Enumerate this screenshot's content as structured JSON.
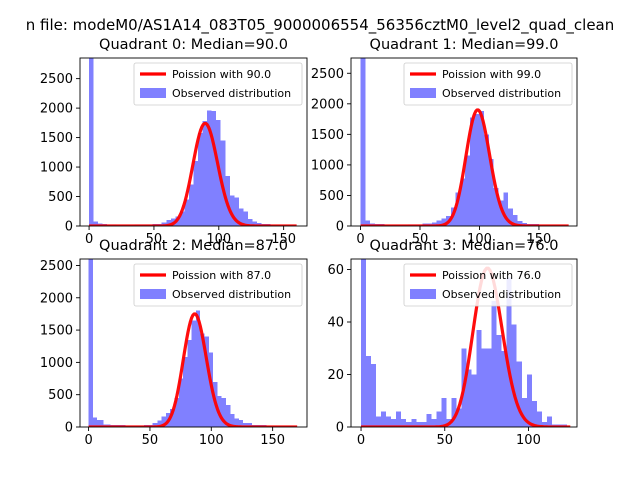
{
  "figure": {
    "suptitle": "n file: modeM0/AS1A14_083T05_9000006554_56356cztM0_level2_quad_clean"
  },
  "colors": {
    "hist": "#8080ff",
    "poisson": "#ff0000",
    "axis": "#000000",
    "bg": "#ffffff"
  },
  "chart_data": [
    {
      "type": "bar",
      "title": "Quadrant 0: Median=90.0",
      "legend": [
        "Poission with 90.0",
        "Observed distribution"
      ],
      "legend_position": "top-right",
      "xlim": [
        -7,
        168
      ],
      "ylim": [
        0,
        2850
      ],
      "xticks": [
        0,
        50,
        100,
        150
      ],
      "yticks": [
        0,
        500,
        1000,
        1500,
        2000,
        2500
      ],
      "mu": 90,
      "scale": 1740,
      "curve_range": [
        0,
        160
      ],
      "bins": [
        {
          "x0": 0,
          "x1": 3.5,
          "y": 2850
        },
        {
          "x0": 3.5,
          "x1": 7,
          "y": 80
        },
        {
          "x0": 7,
          "x1": 10.5,
          "y": 45
        },
        {
          "x0": 10.5,
          "x1": 14,
          "y": 35
        },
        {
          "x0": 14,
          "x1": 21,
          "y": 25
        },
        {
          "x0": 21,
          "x1": 35,
          "y": 20
        },
        {
          "x0": 35,
          "x1": 49,
          "y": 25
        },
        {
          "x0": 49,
          "x1": 56,
          "y": 35
        },
        {
          "x0": 56,
          "x1": 59.5,
          "y": 60
        },
        {
          "x0": 59.5,
          "x1": 63,
          "y": 100
        },
        {
          "x0": 63,
          "x1": 66.5,
          "y": 130
        },
        {
          "x0": 66.5,
          "x1": 70,
          "y": 160
        },
        {
          "x0": 70,
          "x1": 73.5,
          "y": 250
        },
        {
          "x0": 73.5,
          "x1": 77,
          "y": 450
        },
        {
          "x0": 77,
          "x1": 80.5,
          "y": 700
        },
        {
          "x0": 80.5,
          "x1": 84,
          "y": 1100
        },
        {
          "x0": 84,
          "x1": 87.5,
          "y": 1580
        },
        {
          "x0": 87.5,
          "x1": 91,
          "y": 1780
        },
        {
          "x0": 91,
          "x1": 94.5,
          "y": 1960
        },
        {
          "x0": 94.5,
          "x1": 98,
          "y": 1950
        },
        {
          "x0": 98,
          "x1": 101.5,
          "y": 1800
        },
        {
          "x0": 101.5,
          "x1": 105,
          "y": 1450
        },
        {
          "x0": 105,
          "x1": 108.5,
          "y": 850
        },
        {
          "x0": 108.5,
          "x1": 112,
          "y": 520
        },
        {
          "x0": 112,
          "x1": 115.5,
          "y": 480
        },
        {
          "x0": 115.5,
          "x1": 119,
          "y": 300
        },
        {
          "x0": 119,
          "x1": 122.5,
          "y": 250
        },
        {
          "x0": 122.5,
          "x1": 126,
          "y": 120
        },
        {
          "x0": 126,
          "x1": 129.5,
          "y": 80
        },
        {
          "x0": 129.5,
          "x1": 133,
          "y": 55
        },
        {
          "x0": 133,
          "x1": 140,
          "y": 30
        },
        {
          "x0": 140,
          "x1": 160,
          "y": 12
        }
      ]
    },
    {
      "type": "bar",
      "title": "Quadrant 1: Median=99.0",
      "legend": [
        "Poission with 99.0",
        "Observed distribution"
      ],
      "legend_position": "top-right",
      "xlim": [
        -8,
        182
      ],
      "ylim": [
        0,
        2750
      ],
      "xticks": [
        0,
        50,
        100,
        150
      ],
      "yticks": [
        0,
        500,
        1000,
        1500,
        2000,
        2500
      ],
      "mu": 99,
      "scale": 1900,
      "curve_range": [
        0,
        175
      ],
      "bins": [
        {
          "x0": 0,
          "x1": 4,
          "y": 2750
        },
        {
          "x0": 4,
          "x1": 8,
          "y": 90
        },
        {
          "x0": 8,
          "x1": 12,
          "y": 40
        },
        {
          "x0": 12,
          "x1": 20,
          "y": 30
        },
        {
          "x0": 20,
          "x1": 40,
          "y": 20
        },
        {
          "x0": 40,
          "x1": 52,
          "y": 25
        },
        {
          "x0": 52,
          "x1": 60,
          "y": 40
        },
        {
          "x0": 60,
          "x1": 64,
          "y": 60
        },
        {
          "x0": 64,
          "x1": 68,
          "y": 90
        },
        {
          "x0": 68,
          "x1": 72,
          "y": 120
        },
        {
          "x0": 72,
          "x1": 76,
          "y": 160
        },
        {
          "x0": 76,
          "x1": 80,
          "y": 300
        },
        {
          "x0": 80,
          "x1": 84,
          "y": 550
        },
        {
          "x0": 84,
          "x1": 88,
          "y": 780
        },
        {
          "x0": 88,
          "x1": 92,
          "y": 1150
        },
        {
          "x0": 92,
          "x1": 96,
          "y": 1780
        },
        {
          "x0": 96,
          "x1": 100,
          "y": 1830
        },
        {
          "x0": 100,
          "x1": 104,
          "y": 1880
        },
        {
          "x0": 104,
          "x1": 108,
          "y": 1500
        },
        {
          "x0": 108,
          "x1": 112,
          "y": 1100
        },
        {
          "x0": 112,
          "x1": 116,
          "y": 620
        },
        {
          "x0": 116,
          "x1": 120,
          "y": 420
        },
        {
          "x0": 120,
          "x1": 124,
          "y": 550
        },
        {
          "x0": 124,
          "x1": 128,
          "y": 290
        },
        {
          "x0": 128,
          "x1": 132,
          "y": 180
        },
        {
          "x0": 132,
          "x1": 136,
          "y": 80
        },
        {
          "x0": 136,
          "x1": 140,
          "y": 50
        },
        {
          "x0": 140,
          "x1": 150,
          "y": 30
        },
        {
          "x0": 150,
          "x1": 175,
          "y": 12
        }
      ]
    },
    {
      "type": "bar",
      "title": "Quadrant 2: Median=87.0",
      "legend": [
        "Poission with 87.0",
        "Observed distribution"
      ],
      "legend_position": "top-right",
      "xlim": [
        -7,
        178
      ],
      "ylim": [
        0,
        2600
      ],
      "xticks": [
        0,
        50,
        100,
        150
      ],
      "yticks": [
        0,
        500,
        1000,
        1500,
        2000,
        2500
      ],
      "mu": 87,
      "scale": 1750,
      "curve_range": [
        0,
        170
      ],
      "bins": [
        {
          "x0": 0,
          "x1": 3.5,
          "y": 2600
        },
        {
          "x0": 3.5,
          "x1": 7,
          "y": 150
        },
        {
          "x0": 7,
          "x1": 12,
          "y": 110
        },
        {
          "x0": 12,
          "x1": 18,
          "y": 35
        },
        {
          "x0": 18,
          "x1": 30,
          "y": 30
        },
        {
          "x0": 30,
          "x1": 45,
          "y": 20
        },
        {
          "x0": 45,
          "x1": 52,
          "y": 30
        },
        {
          "x0": 52,
          "x1": 56,
          "y": 60
        },
        {
          "x0": 56,
          "x1": 59.5,
          "y": 100
        },
        {
          "x0": 59.5,
          "x1": 63,
          "y": 160
        },
        {
          "x0": 63,
          "x1": 66.5,
          "y": 220
        },
        {
          "x0": 66.5,
          "x1": 70,
          "y": 280
        },
        {
          "x0": 70,
          "x1": 73.5,
          "y": 450
        },
        {
          "x0": 73.5,
          "x1": 77,
          "y": 750
        },
        {
          "x0": 77,
          "x1": 80.5,
          "y": 1080
        },
        {
          "x0": 80.5,
          "x1": 84,
          "y": 1350
        },
        {
          "x0": 84,
          "x1": 87.5,
          "y": 1650
        },
        {
          "x0": 87.5,
          "x1": 91,
          "y": 1800
        },
        {
          "x0": 91,
          "x1": 94.5,
          "y": 1450
        },
        {
          "x0": 94.5,
          "x1": 98,
          "y": 1400
        },
        {
          "x0": 98,
          "x1": 101.5,
          "y": 1150
        },
        {
          "x0": 101.5,
          "x1": 105,
          "y": 700
        },
        {
          "x0": 105,
          "x1": 108.5,
          "y": 480
        },
        {
          "x0": 108.5,
          "x1": 112,
          "y": 450
        },
        {
          "x0": 112,
          "x1": 115.5,
          "y": 340
        },
        {
          "x0": 115.5,
          "x1": 119,
          "y": 200
        },
        {
          "x0": 119,
          "x1": 122.5,
          "y": 130
        },
        {
          "x0": 122.5,
          "x1": 126,
          "y": 110
        },
        {
          "x0": 126,
          "x1": 133,
          "y": 60
        },
        {
          "x0": 133,
          "x1": 145,
          "y": 30
        },
        {
          "x0": 145,
          "x1": 170,
          "y": 12
        }
      ]
    },
    {
      "type": "bar",
      "title": "Quadrant 3: Median=76.0",
      "legend": [
        "Poission with 76.0",
        "Observed distribution"
      ],
      "legend_position": "top-right",
      "xlim": [
        -6,
        129
      ],
      "ylim": [
        0,
        64
      ],
      "xticks": [
        0,
        50,
        100
      ],
      "yticks": [
        0,
        20,
        40,
        60
      ],
      "mu": 76,
      "scale": 60.5,
      "curve_range": [
        0,
        125
      ],
      "bins": [
        {
          "x0": 0,
          "x1": 3,
          "y": 64
        },
        {
          "x0": 3,
          "x1": 6,
          "y": 27
        },
        {
          "x0": 6,
          "x1": 9,
          "y": 24
        },
        {
          "x0": 9,
          "x1": 12,
          "y": 4
        },
        {
          "x0": 12,
          "x1": 15,
          "y": 6
        },
        {
          "x0": 15,
          "x1": 18,
          "y": 4
        },
        {
          "x0": 18,
          "x1": 21,
          "y": 3
        },
        {
          "x0": 21,
          "x1": 24,
          "y": 6
        },
        {
          "x0": 24,
          "x1": 27,
          "y": 3
        },
        {
          "x0": 27,
          "x1": 30,
          "y": 2
        },
        {
          "x0": 30,
          "x1": 33,
          "y": 3
        },
        {
          "x0": 33,
          "x1": 36,
          "y": 2
        },
        {
          "x0": 36,
          "x1": 39,
          "y": 2
        },
        {
          "x0": 39,
          "x1": 42,
          "y": 5
        },
        {
          "x0": 42,
          "x1": 45,
          "y": 3
        },
        {
          "x0": 45,
          "x1": 48,
          "y": 6
        },
        {
          "x0": 48,
          "x1": 51,
          "y": 11
        },
        {
          "x0": 51,
          "x1": 54,
          "y": 3
        },
        {
          "x0": 54,
          "x1": 57,
          "y": 11
        },
        {
          "x0": 57,
          "x1": 60,
          "y": 7
        },
        {
          "x0": 60,
          "x1": 63,
          "y": 30
        },
        {
          "x0": 63,
          "x1": 66,
          "y": 22
        },
        {
          "x0": 66,
          "x1": 69,
          "y": 20
        },
        {
          "x0": 69,
          "x1": 72,
          "y": 37
        },
        {
          "x0": 72,
          "x1": 75,
          "y": 30
        },
        {
          "x0": 75,
          "x1": 78,
          "y": 30
        },
        {
          "x0": 78,
          "x1": 81,
          "y": 48
        },
        {
          "x0": 81,
          "x1": 84,
          "y": 35
        },
        {
          "x0": 84,
          "x1": 87,
          "y": 29
        },
        {
          "x0": 87,
          "x1": 90,
          "y": 57
        },
        {
          "x0": 90,
          "x1": 93,
          "y": 39
        },
        {
          "x0": 93,
          "x1": 96,
          "y": 25
        },
        {
          "x0": 96,
          "x1": 99,
          "y": 11
        },
        {
          "x0": 99,
          "x1": 102,
          "y": 20
        },
        {
          "x0": 102,
          "x1": 105,
          "y": 10
        },
        {
          "x0": 105,
          "x1": 108,
          "y": 6
        },
        {
          "x0": 108,
          "x1": 111,
          "y": 2
        },
        {
          "x0": 111,
          "x1": 114,
          "y": 4
        },
        {
          "x0": 114,
          "x1": 117,
          "y": 1
        },
        {
          "x0": 117,
          "x1": 120,
          "y": 1
        },
        {
          "x0": 120,
          "x1": 123,
          "y": 1
        }
      ]
    }
  ]
}
